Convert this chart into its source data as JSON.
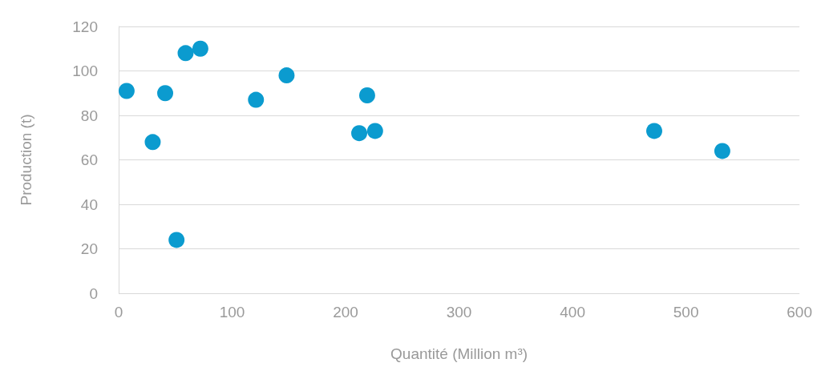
{
  "chart_data": {
    "type": "scatter",
    "xlabel": "Quantité (Million m³)",
    "ylabel": "Production (t)",
    "x": [
      7,
      30,
      41,
      51,
      59,
      72,
      121,
      148,
      212,
      219,
      226,
      472,
      532
    ],
    "series": [
      {
        "color": "#0b9bcf",
        "values": [
          91,
          68,
          90,
          24,
          108,
          110,
          87,
          98,
          72,
          89,
          73,
          73,
          64
        ]
      }
    ],
    "xlim": [
      0,
      600
    ],
    "xticks": [
      0,
      100,
      200,
      300,
      400,
      500,
      600
    ],
    "ylim": [
      0,
      120
    ],
    "yticks": [
      0,
      20,
      40,
      60,
      80,
      100,
      120
    ],
    "grid": "y",
    "marker": "circle"
  }
}
